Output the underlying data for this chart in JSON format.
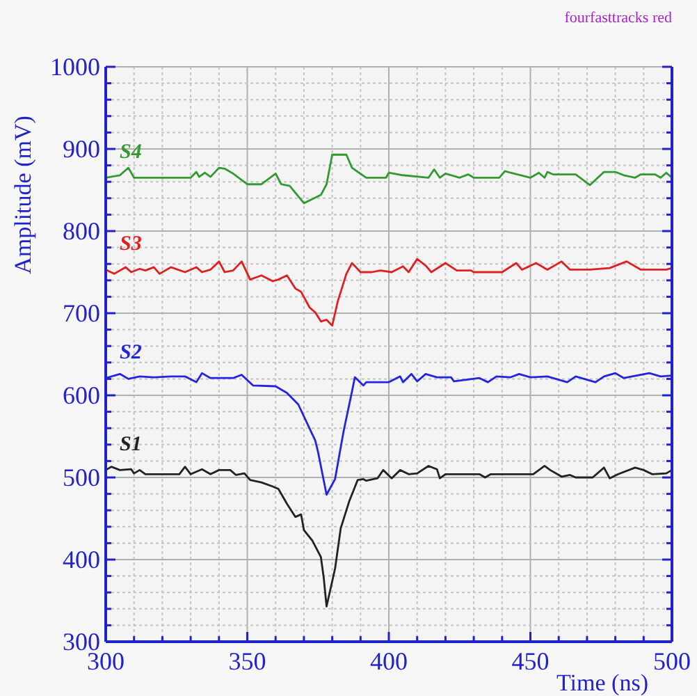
{
  "chart_data": {
    "type": "line",
    "xlabel": "Time (ns)",
    "ylabel": "Amplitude (mV)",
    "annotations": [
      "fourfasttracks red"
    ],
    "xlim": [
      300,
      500
    ],
    "ylim": [
      300,
      1000
    ],
    "xticks": [
      300,
      {
        "value": 310,
        "label": null
      },
      {
        "value": 320,
        "label": null
      },
      {
        "value": 330,
        "label": null
      },
      {
        "value": 340,
        "label": null
      },
      350,
      {
        "value": 360,
        "label": null
      },
      {
        "value": 370,
        "label": null
      },
      {
        "value": 380,
        "label": null
      },
      {
        "value": 390,
        "label": null
      },
      400,
      {
        "value": 410,
        "label": null
      },
      {
        "value": 420,
        "label": null
      },
      {
        "value": 430,
        "label": null
      },
      {
        "value": 440,
        "label": null
      },
      450,
      {
        "value": 460,
        "label": null
      },
      {
        "value": 470,
        "label": null
      },
      {
        "value": 480,
        "label": null
      },
      {
        "value": 490,
        "label": null
      },
      500
    ],
    "yticks": [
      300,
      {
        "value": 320,
        "label": null
      },
      {
        "value": 340,
        "label": null
      },
      {
        "value": 360,
        "label": null
      },
      {
        "value": 380,
        "label": null
      },
      400,
      {
        "value": 420,
        "label": null
      },
      {
        "value": 440,
        "label": null
      },
      {
        "value": 460,
        "label": null
      },
      {
        "value": 480,
        "label": null
      },
      500,
      {
        "value": 520,
        "label": null
      },
      {
        "value": 540,
        "label": null
      },
      {
        "value": 560,
        "label": null
      },
      {
        "value": 580,
        "label": null
      },
      600,
      {
        "value": 620,
        "label": null
      },
      {
        "value": 640,
        "label": null
      },
      {
        "value": 660,
        "label": null
      },
      {
        "value": 680,
        "label": null
      },
      700,
      {
        "value": 720,
        "label": null
      },
      {
        "value": 740,
        "label": null
      },
      {
        "value": 760,
        "label": null
      },
      {
        "value": 780,
        "label": null
      },
      800,
      {
        "value": 820,
        "label": null
      },
      {
        "value": 840,
        "label": null
      },
      {
        "value": 860,
        "label": null
      },
      {
        "value": 880,
        "label": null
      },
      900,
      {
        "value": 920,
        "label": null
      },
      {
        "value": 940,
        "label": null
      },
      {
        "value": 960,
        "label": null
      },
      {
        "value": 980,
        "label": null
      },
      1000
    ],
    "grid": true,
    "legend": false,
    "marker": "none",
    "line_style": "solid",
    "series": [
      {
        "name": "S4",
        "color": "#339933",
        "x": [
          300,
          305,
          308,
          310,
          330,
          332,
          333,
          335,
          337,
          340,
          342,
          345,
          350,
          355,
          360,
          362,
          365,
          370,
          373,
          376,
          378,
          380,
          385,
          387,
          392,
          399,
          400,
          405,
          414,
          416,
          418,
          420,
          425,
          428,
          430,
          439,
          441,
          443,
          450,
          453,
          455,
          456,
          458,
          466,
          471,
          476,
          480,
          483,
          487,
          489,
          494,
          496,
          498,
          500
        ],
        "values": [
          865,
          868,
          877,
          865,
          865,
          872,
          866,
          871,
          866,
          877,
          876,
          870,
          857,
          857,
          870,
          857,
          855,
          834,
          839,
          844,
          857,
          893,
          893,
          877,
          865,
          865,
          871,
          868,
          865,
          875,
          865,
          870,
          865,
          869,
          865,
          865,
          873,
          871,
          865,
          871,
          865,
          872,
          869,
          869,
          856,
          872,
          872,
          868,
          865,
          869,
          869,
          865,
          871,
          865
        ]
      },
      {
        "name": "S3",
        "color": "#e02020",
        "x": [
          300,
          303,
          307,
          309,
          312,
          314,
          317,
          319,
          323,
          328,
          332,
          334,
          337,
          340,
          342,
          345,
          348,
          351,
          355,
          359,
          361,
          364,
          367,
          369,
          372,
          374,
          376,
          378,
          380,
          382,
          385,
          387,
          390,
          394,
          397,
          401,
          405,
          407,
          410,
          413,
          415,
          420,
          424,
          429,
          430,
          440,
          445,
          447,
          452,
          456,
          461,
          464,
          471,
          478,
          484,
          489,
          498,
          500
        ],
        "values": [
          753,
          748,
          756,
          750,
          754,
          752,
          756,
          748,
          756,
          750,
          756,
          750,
          753,
          763,
          750,
          752,
          763,
          741,
          746,
          739,
          741,
          746,
          730,
          726,
          707,
          701,
          690,
          692,
          685,
          715,
          748,
          761,
          750,
          750,
          752,
          750,
          757,
          750,
          766,
          758,
          750,
          761,
          752,
          752,
          750,
          750,
          761,
          753,
          761,
          753,
          763,
          753,
          753,
          755,
          763,
          753,
          753,
          755
        ]
      },
      {
        "name": "S2",
        "color": "#2424e0",
        "x": [
          300,
          305,
          308,
          312,
          317,
          323,
          328,
          332,
          334,
          337,
          345,
          348,
          352,
          360,
          364,
          368,
          374,
          375,
          378,
          381,
          384,
          387,
          388,
          391,
          392,
          400,
          404,
          405,
          408,
          410,
          413,
          417,
          422,
          423,
          432,
          435,
          438,
          443,
          446,
          450,
          456,
          463,
          466,
          473,
          476,
          480,
          483,
          492,
          496,
          500
        ],
        "values": [
          621,
          626,
          620,
          623,
          622,
          623,
          623,
          616,
          627,
          621,
          621,
          625,
          612,
          611,
          603,
          589,
          545,
          531,
          479,
          498,
          556,
          605,
          622,
          612,
          616,
          616,
          623,
          616,
          626,
          617,
          626,
          622,
          622,
          617,
          621,
          616,
          623,
          622,
          626,
          622,
          623,
          616,
          623,
          616,
          623,
          627,
          621,
          627,
          623,
          624
        ]
      },
      {
        "name": "S1",
        "color": "#222222",
        "x": [
          300,
          302,
          305,
          309,
          310,
          312,
          314,
          326,
          328,
          330,
          334,
          337,
          340,
          344,
          346,
          349,
          351,
          355,
          359,
          361,
          364,
          367,
          369,
          370,
          373,
          376,
          377,
          378,
          381,
          383,
          386,
          389,
          391,
          392,
          396,
          398,
          401,
          404,
          407,
          410,
          414,
          417,
          418,
          420,
          432,
          434,
          436,
          451,
          455,
          457,
          461,
          464,
          466,
          472,
          476,
          478,
          481,
          487,
          490,
          493,
          498,
          500
        ],
        "values": [
          509,
          513,
          509,
          510,
          505,
          509,
          504,
          504,
          513,
          504,
          510,
          504,
          509,
          509,
          503,
          505,
          497,
          494,
          489,
          486,
          468,
          452,
          455,
          436,
          423,
          403,
          378,
          343,
          389,
          438,
          471,
          497,
          498,
          496,
          499,
          509,
          499,
          509,
          504,
          505,
          514,
          510,
          499,
          504,
          504,
          500,
          504,
          504,
          514,
          509,
          501,
          503,
          500,
          500,
          512,
          499,
          504,
          512,
          509,
          504,
          505,
          509
        ]
      }
    ]
  }
}
